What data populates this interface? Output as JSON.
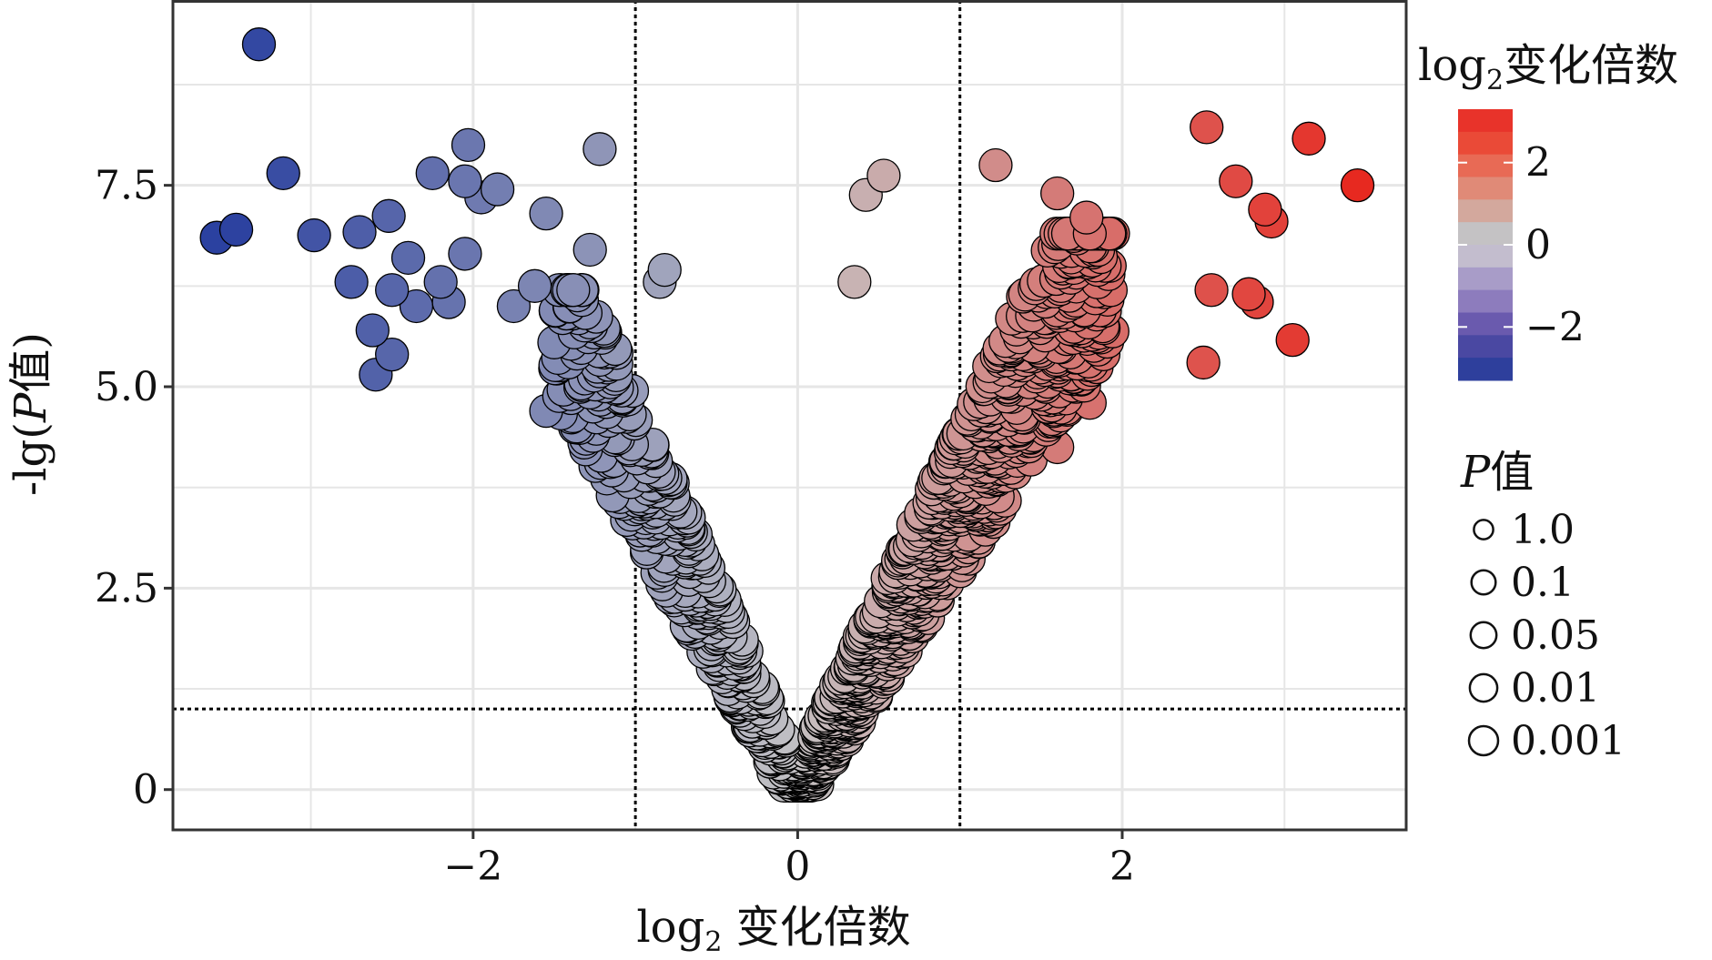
{
  "chart_data": {
    "type": "scatter",
    "title": "",
    "xlabel_main": "log",
    "xlabel_sub": "2",
    "xlabel_rest": " 变化倍数",
    "ylabel_prefix": "-lg(",
    "ylabel_italic": "P",
    "ylabel_suffix": "值)",
    "xlim": [
      -3.85,
      3.75
    ],
    "ylim": [
      -0.5,
      9.8
    ],
    "x_ticks": [
      -2,
      0,
      2
    ],
    "x_tick_labels": [
      "−2",
      "0",
      "2"
    ],
    "y_ticks": [
      0,
      2.5,
      5.0,
      7.5
    ],
    "y_tick_labels": [
      "0",
      "2.5",
      "5.0",
      "7.5"
    ],
    "grid": true,
    "thresholds": {
      "x": [
        -1,
        1
      ],
      "y": 1.0
    },
    "highlight_points": [
      {
        "x": -3.32,
        "y": 9.25
      },
      {
        "x": -3.17,
        "y": 7.65
      },
      {
        "x": -3.46,
        "y": 6.95
      },
      {
        "x": -3.58,
        "y": 6.85
      },
      {
        "x": -2.98,
        "y": 6.88
      },
      {
        "x": -2.7,
        "y": 6.92
      },
      {
        "x": -2.75,
        "y": 6.3
      },
      {
        "x": -2.52,
        "y": 7.12
      },
      {
        "x": -2.4,
        "y": 6.6
      },
      {
        "x": -2.5,
        "y": 6.2
      },
      {
        "x": -2.35,
        "y": 6.0
      },
      {
        "x": -2.2,
        "y": 6.3
      },
      {
        "x": -2.15,
        "y": 6.05
      },
      {
        "x": -2.05,
        "y": 6.65
      },
      {
        "x": -2.25,
        "y": 7.65
      },
      {
        "x": -2.05,
        "y": 7.55
      },
      {
        "x": -2.03,
        "y": 8.0
      },
      {
        "x": -1.95,
        "y": 7.35
      },
      {
        "x": -1.85,
        "y": 7.45
      },
      {
        "x": -1.55,
        "y": 7.15
      },
      {
        "x": -1.28,
        "y": 6.7
      },
      {
        "x": -1.22,
        "y": 7.95
      },
      {
        "x": -0.82,
        "y": 6.45
      },
      {
        "x": -0.85,
        "y": 6.3
      },
      {
        "x": -2.62,
        "y": 5.7
      },
      {
        "x": -2.6,
        "y": 5.15
      },
      {
        "x": -2.5,
        "y": 5.4
      },
      {
        "x": -1.75,
        "y": 6.0
      },
      {
        "x": -1.62,
        "y": 6.25
      },
      {
        "x": -1.5,
        "y": 5.55
      },
      {
        "x": -1.35,
        "y": 5.85
      },
      {
        "x": -1.55,
        "y": 4.7
      },
      {
        "x": -0.85,
        "y": 3.7
      },
      {
        "x": 0.53,
        "y": 7.62
      },
      {
        "x": 0.42,
        "y": 7.38
      },
      {
        "x": 0.35,
        "y": 6.3
      },
      {
        "x": 1.22,
        "y": 7.75
      },
      {
        "x": 1.6,
        "y": 7.4
      },
      {
        "x": 1.78,
        "y": 7.1
      },
      {
        "x": 1.8,
        "y": 6.9
      },
      {
        "x": 1.85,
        "y": 6.45
      },
      {
        "x": 1.88,
        "y": 5.75
      },
      {
        "x": 1.6,
        "y": 4.25
      },
      {
        "x": 1.75,
        "y": 5.1
      },
      {
        "x": 1.8,
        "y": 4.8
      },
      {
        "x": 2.52,
        "y": 8.22
      },
      {
        "x": 2.7,
        "y": 7.55
      },
      {
        "x": 2.88,
        "y": 7.2
      },
      {
        "x": 2.92,
        "y": 7.05
      },
      {
        "x": 3.15,
        "y": 8.08
      },
      {
        "x": 3.45,
        "y": 7.5
      },
      {
        "x": 2.55,
        "y": 6.2
      },
      {
        "x": 2.78,
        "y": 6.15
      },
      {
        "x": 2.83,
        "y": 6.05
      },
      {
        "x": 3.05,
        "y": 5.58
      },
      {
        "x": 2.5,
        "y": 5.3
      }
    ],
    "color_scale": {
      "low": "#2b41a0",
      "mid": "#c4c2c4",
      "high": "#e8271e",
      "range": [
        -3.5,
        3.5
      ],
      "steps": [
        {
          "value": 3.3,
          "color": "#e8332a"
        },
        {
          "value": 2.8,
          "color": "#ea4a37"
        },
        {
          "value": 2.3,
          "color": "#e86a55"
        },
        {
          "value": 1.8,
          "color": "#e08a77"
        },
        {
          "value": 1.1,
          "color": "#d3a89d"
        },
        {
          "value": 0.4,
          "color": "#c4c2c4"
        },
        {
          "value": -0.4,
          "color": "#c3bdce"
        },
        {
          "value": -1.1,
          "color": "#a89cc8"
        },
        {
          "value": -1.8,
          "color": "#8d7cbd"
        },
        {
          "value": -2.3,
          "color": "#6a5aae"
        },
        {
          "value": -2.8,
          "color": "#4a48a2"
        },
        {
          "value": -3.3,
          "color": "#2e3f9c"
        }
      ]
    }
  },
  "legend_color": {
    "title_main": "log",
    "title_sub": "2",
    "title_rest": "变化倍数",
    "ticks": [
      {
        "value": 2,
        "label": "2"
      },
      {
        "value": 0,
        "label": "0"
      },
      {
        "value": -2,
        "label": "−2"
      }
    ]
  },
  "legend_size": {
    "title_italic": "P",
    "title_rest": "值",
    "items": [
      {
        "label": "1.0",
        "size": 0.4
      },
      {
        "label": "0.1",
        "size": 0.7
      },
      {
        "label": "0.05",
        "size": 0.8
      },
      {
        "label": "0.01",
        "size": 0.9
      },
      {
        "label": "0.001",
        "size": 1.0
      }
    ]
  },
  "colors": {
    "point_outline": "#000000",
    "grid": "#e6e6e6",
    "panel_border": "#333333",
    "threshold_line": "#000000"
  }
}
